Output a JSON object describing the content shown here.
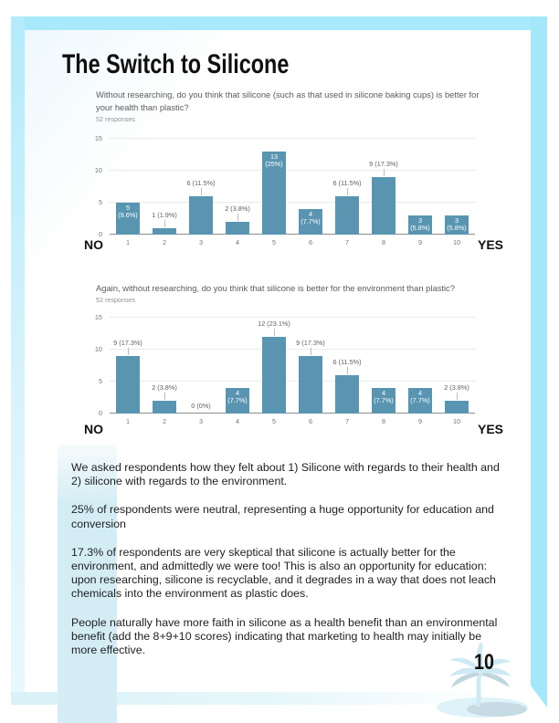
{
  "page": {
    "title": "The Switch to Silicone",
    "page_number": "10",
    "colors": {
      "frame_cyan": "#a8e9fc",
      "accent_stripe": "#d4edf5",
      "bar_teal": "#5995b1"
    }
  },
  "chart_data": [
    {
      "type": "bar",
      "question": "Without researching, do you think that silicone (such as that used in silicone baking cups) is better for your health than plastic?",
      "responses": "52 responses",
      "no_label": "NO",
      "yes_label": "YES",
      "ylim": [
        0,
        15
      ],
      "yticks": [
        0,
        5,
        10,
        15
      ],
      "grid": "horizontal",
      "categories": [
        "1",
        "2",
        "3",
        "4",
        "5",
        "6",
        "7",
        "8",
        "9",
        "10"
      ],
      "values": [
        5,
        1,
        6,
        2,
        13,
        4,
        6,
        9,
        3,
        3
      ],
      "bars": [
        {
          "value": 5,
          "pct": "9.6%",
          "label_position": "inside"
        },
        {
          "value": 1,
          "pct": "1.9%",
          "label_position": "above"
        },
        {
          "value": 6,
          "pct": "11.5%",
          "label_position": "above"
        },
        {
          "value": 2,
          "pct": "3.8%",
          "label_position": "above"
        },
        {
          "value": 13,
          "pct": "25%",
          "label_position": "inside"
        },
        {
          "value": 4,
          "pct": "7.7%",
          "label_position": "inside"
        },
        {
          "value": 6,
          "pct": "11.5%",
          "label_position": "above"
        },
        {
          "value": 9,
          "pct": "17.3%",
          "label_position": "above"
        },
        {
          "value": 3,
          "pct": "5.8%",
          "label_position": "inside"
        },
        {
          "value": 3,
          "pct": "5.8%",
          "label_position": "inside"
        }
      ]
    },
    {
      "type": "bar",
      "question": "Again, without researching, do you think that silicone is better for the environment than plastic?",
      "responses": "52 responses",
      "no_label": "NO",
      "yes_label": "YES",
      "ylim": [
        0,
        15
      ],
      "yticks": [
        0,
        5,
        10,
        15
      ],
      "grid": "horizontal",
      "categories": [
        "1",
        "2",
        "3",
        "4",
        "5",
        "6",
        "7",
        "8",
        "9",
        "10"
      ],
      "values": [
        9,
        2,
        0,
        4,
        12,
        9,
        6,
        4,
        4,
        2
      ],
      "bars": [
        {
          "value": 9,
          "pct": "17.3%",
          "label_position": "above"
        },
        {
          "value": 2,
          "pct": "3.8%",
          "label_position": "above"
        },
        {
          "value": 0,
          "pct": "0%",
          "label_position": "above"
        },
        {
          "value": 4,
          "pct": "7.7%",
          "label_position": "inside"
        },
        {
          "value": 12,
          "pct": "23.1%",
          "label_position": "above"
        },
        {
          "value": 9,
          "pct": "17.3%",
          "label_position": "above"
        },
        {
          "value": 6,
          "pct": "11.5%",
          "label_position": "above"
        },
        {
          "value": 4,
          "pct": "7.7%",
          "label_position": "inside"
        },
        {
          "value": 4,
          "pct": "7.7%",
          "label_position": "inside"
        },
        {
          "value": 2,
          "pct": "3.8%",
          "label_position": "above"
        }
      ]
    }
  ],
  "paragraphs": [
    "We asked respondents how they felt about 1) Silicone with regards to their health and 2) silicone with regards to the environment.",
    "25% of respondents were neutral, representing a huge opportunity for education and conversion",
    "17.3% of respondents are very skeptical that silicone is actually better for the environment, and admittedly we were too! This is also an opportunity for education: upon researching, silicone is recyclable, and it degrades in a way that does not leach chemicals into the environment as plastic does.",
    "People naturally have more faith in silicone as a health benefit than an environmental benefit (add the 8+9+10 scores) indicating that marketing to health may initially be more effective."
  ]
}
